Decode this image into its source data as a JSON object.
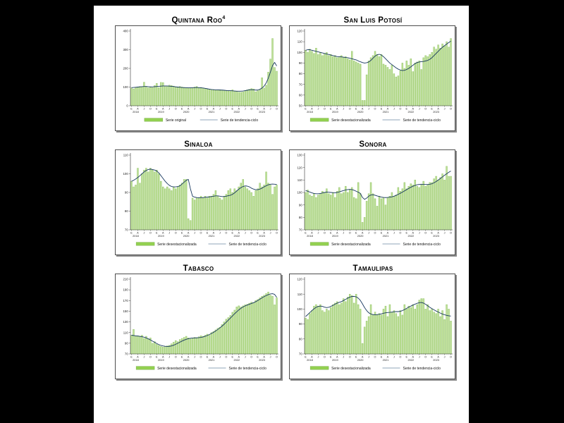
{
  "page": {
    "background": "#000000",
    "panel_background": "#ffffff"
  },
  "colors": {
    "bar_fill": "#bfe199",
    "bar_stroke": "#8cc05e",
    "legend_swatch": "#92d050",
    "legend_swatch_stroke": "#74a945",
    "trend_line": "#17375e",
    "legend_line": "#8fa6ba",
    "axis": "#333333",
    "tick_text": "#1a1a1a"
  },
  "chart_data": [
    {
      "type": "bar",
      "title": "Quintana Roo",
      "title_sup": "4",
      "bar_series_name": "Serie original",
      "line_series_name": "Serie de tendencia-ciclo",
      "ylim": [
        0,
        400
      ],
      "yticks": [
        0,
        100,
        200,
        300,
        400
      ],
      "month_tick_letters": [
        "E",
        "A",
        "J",
        "O"
      ],
      "years": [
        "2018",
        "2019",
        "2020",
        "2021",
        "2022",
        "2023"
      ],
      "x_range": "Ene 2018 - Oct 2023",
      "values": [
        95,
        90,
        99,
        100,
        103,
        100,
        126,
        104,
        96,
        99,
        97,
        108,
        120,
        97,
        125,
        124,
        103,
        105,
        110,
        108,
        105,
        102,
        99,
        103,
        100,
        98,
        97,
        95,
        96,
        97,
        100,
        103,
        96,
        98,
        95,
        93,
        90,
        87,
        85,
        84,
        83,
        85,
        86,
        84,
        82,
        80,
        78,
        80,
        85,
        78,
        76,
        73,
        72,
        74,
        80,
        85,
        88,
        92,
        90,
        75,
        80,
        85,
        150,
        95,
        110,
        180,
        250,
        360,
        205,
        185
      ],
      "trend": [
        97,
        98,
        99,
        100,
        101,
        102,
        103,
        103,
        102,
        101,
        101,
        102,
        103,
        104,
        105,
        106,
        106,
        106,
        105,
        104,
        103,
        101,
        100,
        99,
        98,
        97,
        97,
        96,
        96,
        97,
        97,
        98,
        97,
        96,
        95,
        93,
        91,
        89,
        87,
        86,
        85,
        85,
        84,
        84,
        83,
        82,
        81,
        81,
        80,
        79,
        78,
        78,
        78,
        79,
        81,
        83,
        85,
        86,
        85,
        84,
        84,
        88,
        95,
        105,
        122,
        148,
        180,
        215,
        232,
        213
      ]
    },
    {
      "type": "bar",
      "title": "San Luis Potosí",
      "title_sup": "",
      "bar_series_name": "Serie desestacionalizada",
      "line_series_name": "Serie de tendencia-ciclo",
      "ylim": [
        50,
        120
      ],
      "yticks": [
        50,
        60,
        70,
        80,
        90,
        100,
        110,
        120
      ],
      "month_tick_letters": [
        "E",
        "A",
        "J",
        "O"
      ],
      "years": [
        "2018",
        "2019",
        "2020",
        "2021",
        "2022",
        "2023"
      ],
      "x_range": "Ene 2018 - Oct 2023",
      "values": [
        102,
        100,
        103,
        101,
        99,
        104,
        98,
        100,
        97,
        99,
        100,
        97,
        98,
        96,
        97,
        95,
        96,
        97,
        95,
        96,
        94,
        93,
        101,
        92,
        91,
        90,
        89,
        55,
        55,
        79,
        92,
        95,
        97,
        101,
        98,
        96,
        98,
        89,
        88,
        86,
        84,
        88,
        80,
        77,
        78,
        83,
        90,
        85,
        92,
        88,
        94,
        82,
        90,
        91,
        92,
        84,
        95,
        97,
        96,
        98,
        100,
        105,
        103,
        107,
        104,
        108,
        106,
        110,
        105,
        113
      ],
      "trend": [
        102,
        102.5,
        102.5,
        102,
        101.5,
        101,
        100.5,
        100,
        99.5,
        99,
        98.5,
        98,
        97.5,
        97,
        96.5,
        96,
        96,
        95.8,
        95.5,
        95.2,
        95,
        94.5,
        94,
        93.5,
        93,
        92,
        91.2,
        90.5,
        90,
        90.3,
        91,
        92.5,
        94.5,
        96.5,
        97.8,
        98.2,
        97.5,
        96,
        94,
        92,
        90,
        88.5,
        87,
        85.5,
        84.3,
        83.5,
        83,
        83.2,
        84,
        85,
        86.5,
        88,
        89.5,
        90.5,
        91,
        91.3,
        91.5,
        92,
        92.5,
        93.5,
        95,
        97,
        99,
        101,
        103,
        104.8,
        106.3,
        107.8,
        109.2,
        110.5
      ]
    },
    {
      "type": "bar",
      "title": "Sinaloa",
      "title_sup": "",
      "bar_series_name": "Serie desestacionalizada",
      "line_series_name": "Serie de tendencia-ciclo",
      "ylim": [
        70,
        110
      ],
      "yticks": [
        70,
        80,
        90,
        100,
        110
      ],
      "month_tick_letters": [
        "E",
        "A",
        "J",
        "O"
      ],
      "years": [
        "2018",
        "2019",
        "2020",
        "2021",
        "2022",
        "2023"
      ],
      "x_range": "Ene 2018 - Oct 2023",
      "values": [
        96,
        93,
        94,
        103,
        95,
        100,
        102,
        103,
        101,
        103,
        102,
        101,
        102,
        100,
        96,
        93,
        92,
        93,
        92,
        91,
        93,
        92,
        93,
        94,
        95,
        97,
        97,
        76,
        75,
        87,
        86,
        87,
        87,
        88,
        87,
        88,
        87,
        88,
        88,
        89,
        91,
        88,
        87,
        86,
        88,
        89,
        91,
        92,
        90,
        92,
        91,
        93,
        95,
        97,
        93,
        92,
        91,
        90,
        88,
        91,
        92,
        95,
        93,
        94,
        101,
        95,
        94,
        89,
        93,
        94
      ],
      "trend": [
        96,
        96.5,
        97.2,
        98,
        99,
        100,
        101,
        101.8,
        102.3,
        102.5,
        102.3,
        102,
        101.5,
        100.5,
        99,
        97.5,
        96,
        94.8,
        93.8,
        93.2,
        93,
        93,
        93.2,
        93.5,
        94.5,
        95.5,
        96.5,
        97,
        92,
        88,
        87.5,
        87.3,
        87.2,
        87.2,
        87.3,
        87.4,
        87.5,
        87.6,
        87.8,
        88,
        88.2,
        88.2,
        88,
        87.8,
        87.8,
        88,
        88.3,
        88.5,
        89,
        89.8,
        90.8,
        91.8,
        92.6,
        93.2,
        93.5,
        93.4,
        93,
        92.3,
        91.8,
        91.5,
        91.5,
        91.8,
        92.3,
        93,
        93.6,
        94.1,
        94.4,
        94.5,
        94.4,
        94.3
      ]
    },
    {
      "type": "bar",
      "title": "Sonora",
      "title_sup": "",
      "bar_series_name": "Serie desestacionalizada",
      "line_series_name": "Serie de tendencia-ciclo",
      "ylim": [
        70,
        130
      ],
      "yticks": [
        70,
        80,
        90,
        100,
        110,
        120,
        130
      ],
      "month_tick_letters": [
        "E",
        "A",
        "J",
        "O"
      ],
      "years": [
        "2018",
        "2019",
        "2020",
        "2021",
        "2022",
        "2023"
      ],
      "x_range": "Ene 2018 - Oct 2023",
      "values": [
        100,
        102,
        98,
        97,
        99,
        96,
        98,
        99,
        101,
        100,
        103,
        99,
        98,
        100,
        96,
        101,
        104,
        99,
        100,
        105,
        100,
        102,
        104,
        96,
        95,
        108,
        99,
        76,
        80,
        93,
        99,
        108,
        99,
        95,
        89,
        97,
        95,
        96,
        90,
        96,
        97,
        100,
        97,
        98,
        104,
        101,
        103,
        108,
        103,
        105,
        107,
        106,
        110,
        105,
        104,
        106,
        109,
        105,
        106,
        108,
        108,
        111,
        113,
        110,
        112,
        115,
        110,
        121,
        113,
        113
      ],
      "trend": [
        101.5,
        101,
        100.3,
        99.7,
        99.2,
        99,
        99,
        99.2,
        99.6,
        100,
        100.3,
        100.2,
        100,
        99.8,
        99.7,
        100,
        100.5,
        101,
        101.5,
        102,
        102.3,
        102.5,
        102.3,
        101.8,
        101,
        100.2,
        99.3,
        96,
        94.5,
        95.5,
        97,
        98,
        98.2,
        97.8,
        97.2,
        96.8,
        96.3,
        96,
        95.9,
        96,
        96.2,
        96.5,
        97,
        97.7,
        98.5,
        99.4,
        100.3,
        101.3,
        102.3,
        103.3,
        104.2,
        105,
        105.7,
        106.2,
        106.5,
        106.6,
        106.5,
        106.4,
        106.4,
        106.6,
        107,
        107.8,
        108.8,
        110,
        111.2,
        112.5,
        113.8,
        115,
        116.2,
        117.2
      ]
    },
    {
      "type": "bar",
      "title": "Tabasco",
      "title_sup": "",
      "bar_series_name": "Serie desestacionalizada",
      "line_series_name": "Serie de tendencia-ciclo",
      "ylim": [
        70,
        210
      ],
      "yticks": [
        70,
        90,
        110,
        130,
        150,
        170,
        190,
        210
      ],
      "month_tick_letters": [
        "E",
        "A",
        "J",
        "O"
      ],
      "years": [
        "2018",
        "2019",
        "2020",
        "2021",
        "2022",
        "2023"
      ],
      "x_range": "Ene 2018 - Oct 2023",
      "values": [
        105,
        116,
        103,
        104,
        102,
        105,
        99,
        103,
        98,
        100,
        90,
        93,
        88,
        86,
        84,
        83,
        84,
        85,
        86,
        89,
        92,
        95,
        93,
        97,
        99,
        101,
        103,
        100,
        98,
        100,
        101,
        100,
        102,
        104,
        103,
        105,
        107,
        105,
        110,
        112,
        115,
        118,
        120,
        125,
        130,
        135,
        138,
        142,
        148,
        152,
        158,
        160,
        158,
        160,
        162,
        163,
        165,
        167,
        166,
        170,
        172,
        175,
        178,
        180,
        183,
        186,
        180,
        178,
        162,
        175
      ],
      "trend": [
        105,
        104.5,
        104,
        103.5,
        103,
        102.3,
        101.3,
        100,
        98.3,
        96.3,
        94,
        91.8,
        89.5,
        87.5,
        86,
        85,
        84.3,
        84,
        84.2,
        85,
        86.3,
        88,
        90,
        92,
        94,
        95.8,
        97.3,
        98.5,
        99.3,
        99.8,
        100,
        100.2,
        100.5,
        101,
        101.8,
        103,
        104.5,
        106.3,
        108.3,
        110.5,
        113,
        115.8,
        118.8,
        122,
        125.5,
        129.3,
        133.3,
        137.3,
        141.3,
        145.3,
        149,
        152.5,
        155.5,
        158,
        160,
        161.5,
        163,
        164.5,
        166,
        167.8,
        170,
        172.5,
        175,
        177.3,
        179.3,
        181,
        182.3,
        182.8,
        181.5,
        176
      ]
    },
    {
      "type": "bar",
      "title": "Tamaulipas",
      "title_sup": "",
      "bar_series_name": "Serie desestacionalizada",
      "line_series_name": "Serie de tendencia-ciclo",
      "ylim": [
        70,
        120
      ],
      "yticks": [
        70,
        80,
        90,
        100,
        110,
        120
      ],
      "month_tick_letters": [
        "E",
        "A",
        "J",
        "O"
      ],
      "years": [
        "2018",
        "2019",
        "2020",
        "2021",
        "2022",
        "2023"
      ],
      "x_range": "Ene 2018 - Oct 2023",
      "values": [
        94,
        93,
        97,
        99,
        102,
        103,
        102,
        103,
        99,
        98,
        100,
        99,
        101,
        103,
        104,
        105,
        103,
        104,
        107,
        105,
        108,
        110,
        109,
        104,
        110,
        103,
        100,
        77,
        88,
        92,
        95,
        103,
        96,
        98,
        96,
        97,
        96,
        100,
        102,
        95,
        103,
        98,
        99,
        97,
        95,
        99,
        96,
        103,
        100,
        102,
        101,
        103,
        100,
        103,
        106,
        107,
        107,
        100,
        103,
        99,
        100,
        98,
        97,
        100,
        95,
        99,
        93,
        103,
        100,
        92
      ],
      "trend": [
        95,
        96.3,
        97.7,
        99,
        100.2,
        101.2,
        101.8,
        102,
        101.8,
        101.3,
        101,
        101.2,
        101.8,
        102.5,
        103.3,
        104,
        104.5,
        105,
        105.7,
        106.5,
        107.3,
        108,
        108.4,
        108.5,
        108.2,
        107.3,
        105.8,
        103.5,
        101,
        99,
        97.5,
        96.7,
        96.3,
        96.2,
        96.3,
        96.5,
        96.8,
        97.2,
        97.5,
        97.7,
        97.8,
        98,
        98.2,
        98.3,
        98.3,
        98.5,
        99,
        99.7,
        100.5,
        101.3,
        102,
        102.7,
        103.3,
        103.9,
        104.3,
        104.4,
        104,
        103.2,
        102.2,
        101.2,
        100.3,
        99.5,
        98.7,
        98,
        97.3,
        96.7,
        96.2,
        95.8,
        95.5,
        95.3
      ]
    }
  ]
}
